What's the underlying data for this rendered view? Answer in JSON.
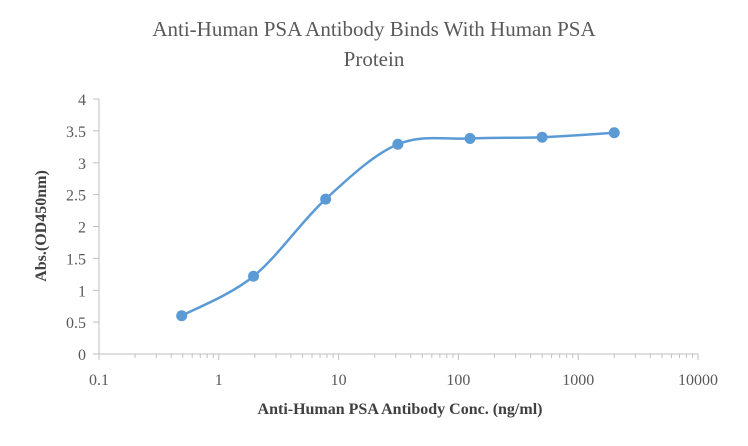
{
  "chart_data": {
    "type": "scatter",
    "title_line1": "Anti-Human PSA Antibody Binds With Human PSA",
    "title_line2": "Protein",
    "xlabel": "Anti-Human PSA Antibody Conc. (ng/ml)",
    "ylabel": "Abs.(OD450nm)",
    "xscale": "log",
    "xlim": [
      0.1,
      10000
    ],
    "ylim": [
      0,
      4
    ],
    "x_ticks": [
      "0.1",
      "1",
      "10",
      "100",
      "1000",
      "10000"
    ],
    "y_ticks": [
      "0",
      "0.5",
      "1",
      "1.5",
      "2",
      "2.5",
      "3",
      "3.5",
      "4"
    ],
    "grid": false,
    "legend": "none",
    "series": [
      {
        "x": [
          0.49,
          1.95,
          7.8,
          31.25,
          125,
          500,
          2000
        ],
        "y": [
          0.6,
          1.22,
          2.43,
          3.29,
          3.38,
          3.4,
          3.47
        ],
        "color": "#5B9BD5",
        "smooth": true,
        "markers": true
      }
    ]
  }
}
